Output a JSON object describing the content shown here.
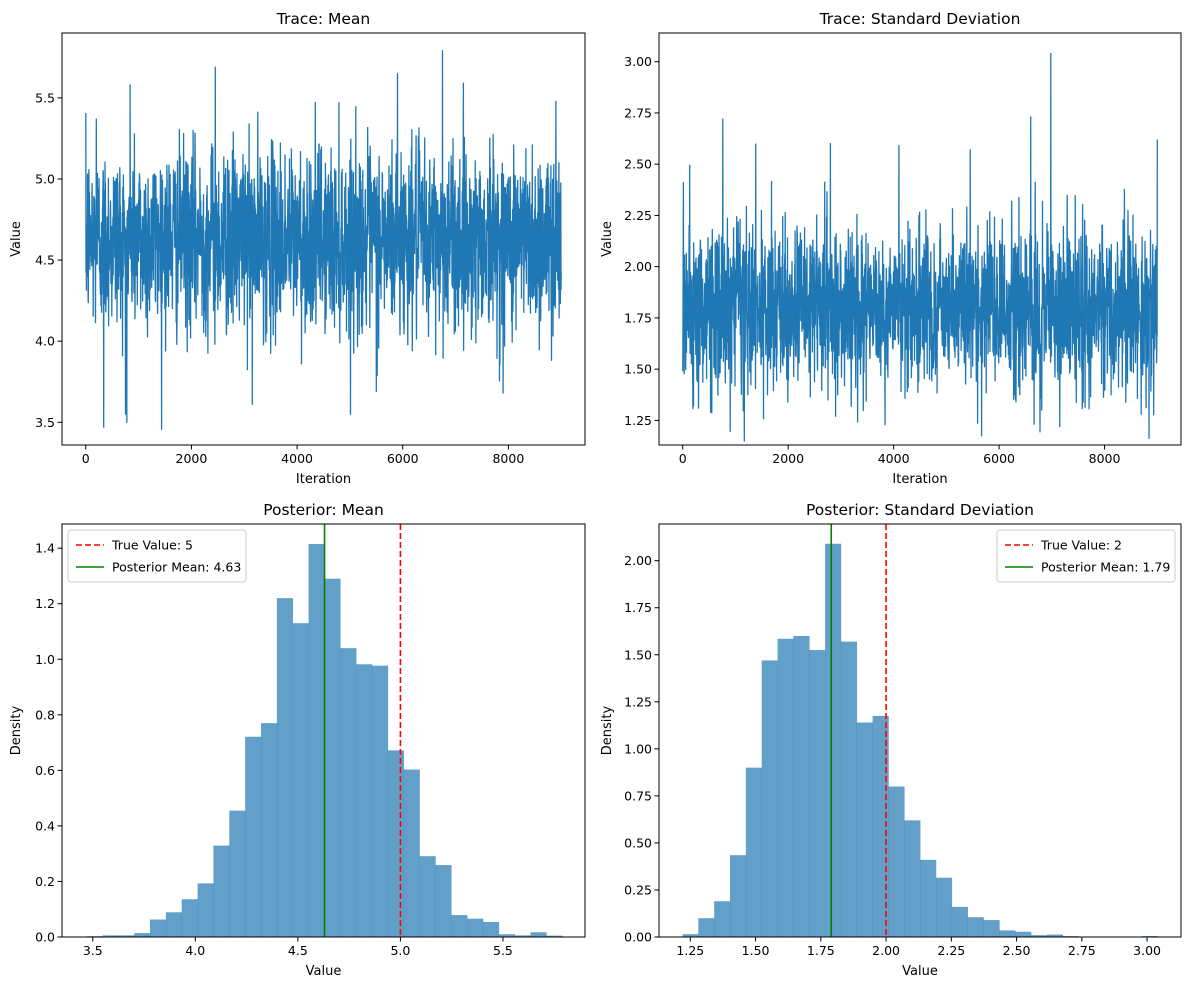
{
  "chart_data": [
    {
      "type": "line",
      "title": "Trace: Mean",
      "xlabel": "Iteration",
      "ylabel": "Value",
      "xlim": [
        -450,
        9450
      ],
      "ylim": [
        3.36,
        5.9
      ],
      "xticks": [
        0,
        2000,
        4000,
        6000,
        8000
      ],
      "xtick_labels": [
        "0",
        "2000",
        "4000",
        "6000",
        "8000"
      ],
      "yticks": [
        3.5,
        4.0,
        4.5,
        5.0,
        5.5
      ],
      "ytick_labels": [
        "3.5",
        "4.0",
        "4.5",
        "5.0",
        "5.5"
      ],
      "color": "#1f77b4",
      "n_iterations": 9000,
      "trace_summary": {
        "center": 4.63,
        "spread": 0.28,
        "extremes": [
          {
            "x": 30,
            "y": 5.03
          },
          {
            "x": 200,
            "y": 5.37
          },
          {
            "x": 340,
            "y": 3.47
          },
          {
            "x": 750,
            "y": 3.55
          },
          {
            "x": 840,
            "y": 5.58
          },
          {
            "x": 2450,
            "y": 5.69
          },
          {
            "x": 3150,
            "y": 3.61
          },
          {
            "x": 5500,
            "y": 3.69
          },
          {
            "x": 5900,
            "y": 5.65
          },
          {
            "x": 6750,
            "y": 5.79
          },
          {
            "x": 7900,
            "y": 3.68
          },
          {
            "x": 8900,
            "y": 5.48
          }
        ]
      },
      "grid": false,
      "legend": null
    },
    {
      "type": "line",
      "title": "Trace: Standard Deviation",
      "xlabel": "Iteration",
      "ylabel": "Value",
      "xlim": [
        -450,
        9450
      ],
      "ylim": [
        1.13,
        3.14
      ],
      "xticks": [
        0,
        2000,
        4000,
        6000,
        8000
      ],
      "xtick_labels": [
        "0",
        "2000",
        "4000",
        "6000",
        "8000"
      ],
      "yticks": [
        1.25,
        1.5,
        1.75,
        2.0,
        2.25,
        2.5,
        2.75,
        3.0
      ],
      "ytick_labels": [
        "1.25",
        "1.50",
        "1.75",
        "2.00",
        "2.25",
        "2.50",
        "2.75",
        "3.00"
      ],
      "color": "#1f77b4",
      "n_iterations": 9000,
      "trace_summary": {
        "center": 1.79,
        "spread": 0.2,
        "extremes": [
          {
            "x": 10,
            "y": 2.41
          },
          {
            "x": 300,
            "y": 1.31
          },
          {
            "x": 760,
            "y": 2.72
          },
          {
            "x": 2800,
            "y": 2.6
          },
          {
            "x": 2900,
            "y": 1.27
          },
          {
            "x": 4100,
            "y": 2.59
          },
          {
            "x": 5450,
            "y": 2.57
          },
          {
            "x": 6600,
            "y": 2.73
          },
          {
            "x": 6980,
            "y": 3.04
          },
          {
            "x": 7150,
            "y": 1.22
          },
          {
            "x": 9000,
            "y": 2.62
          }
        ]
      },
      "grid": false,
      "legend": null
    },
    {
      "type": "bar",
      "title": "Posterior: Mean",
      "xlabel": "Value",
      "ylabel": "Density",
      "xlim": [
        3.35,
        5.9
      ],
      "ylim": [
        0,
        1.487
      ],
      "xticks": [
        3.5,
        4.0,
        4.5,
        5.0,
        5.5
      ],
      "xtick_labels": [
        "3.5",
        "4.0",
        "4.5",
        "5.0",
        "5.5"
      ],
      "yticks": [
        0,
        0.2,
        0.4,
        0.6,
        0.8,
        1.0,
        1.2,
        1.4
      ],
      "ytick_labels": [
        "0.0",
        "0.2",
        "0.4",
        "0.6",
        "0.8",
        "1.0",
        "1.2",
        "1.4"
      ],
      "bin_start": 3.47,
      "bin_width": 0.0773,
      "values": [
        0.003,
        0.006,
        0.006,
        0.014,
        0.063,
        0.089,
        0.136,
        0.193,
        0.329,
        0.455,
        0.721,
        0.77,
        1.22,
        1.13,
        1.415,
        1.29,
        1.04,
        0.982,
        0.977,
        0.672,
        0.603,
        0.291,
        0.259,
        0.079,
        0.066,
        0.054,
        0.01,
        0.006,
        0.017,
        0.005
      ],
      "bar_color": "#1f77b4",
      "bar_alpha": 0.7,
      "reference_lines": [
        {
          "label": "True Value: 5",
          "x": 5.0,
          "color": "#ff0000",
          "style": "dashed"
        },
        {
          "label": "Posterior Mean: 4.63",
          "x": 4.63,
          "color": "#008000",
          "style": "solid"
        }
      ],
      "grid": false,
      "legend": "upper left"
    },
    {
      "type": "bar",
      "title": "Posterior: Standard Deviation",
      "xlabel": "Value",
      "ylabel": "Density",
      "xlim": [
        1.13,
        3.13
      ],
      "ylim": [
        0,
        2.195
      ],
      "xticks": [
        1.25,
        1.5,
        1.75,
        2.0,
        2.25,
        2.5,
        2.75,
        3.0
      ],
      "xtick_labels": [
        "1.25",
        "1.50",
        "1.75",
        "2.00",
        "2.25",
        "2.50",
        "2.75",
        "3.00"
      ],
      "yticks": [
        0,
        0.25,
        0.5,
        0.75,
        1.0,
        1.25,
        1.5,
        1.75,
        2.0
      ],
      "ytick_labels": [
        "0.00",
        "0.25",
        "0.50",
        "0.75",
        "1.00",
        "1.25",
        "1.50",
        "1.75",
        "2.00"
      ],
      "bin_start": 1.22,
      "bin_width": 0.0607,
      "values": [
        0.015,
        0.1,
        0.19,
        0.435,
        0.9,
        1.47,
        1.585,
        1.6,
        1.525,
        2.09,
        1.57,
        1.14,
        1.175,
        0.8,
        0.62,
        0.41,
        0.315,
        0.16,
        0.105,
        0.09,
        0.035,
        0.028,
        0.01,
        0.013,
        0.005,
        0.002,
        0.001,
        0.001,
        0.001,
        0.005
      ],
      "bar_color": "#1f77b4",
      "bar_alpha": 0.7,
      "reference_lines": [
        {
          "label": "True Value: 2",
          "x": 2.0,
          "color": "#ff0000",
          "style": "dashed"
        },
        {
          "label": "Posterior Mean: 1.79",
          "x": 1.79,
          "color": "#008000",
          "style": "solid"
        }
      ],
      "grid": false,
      "legend": "upper right"
    }
  ]
}
